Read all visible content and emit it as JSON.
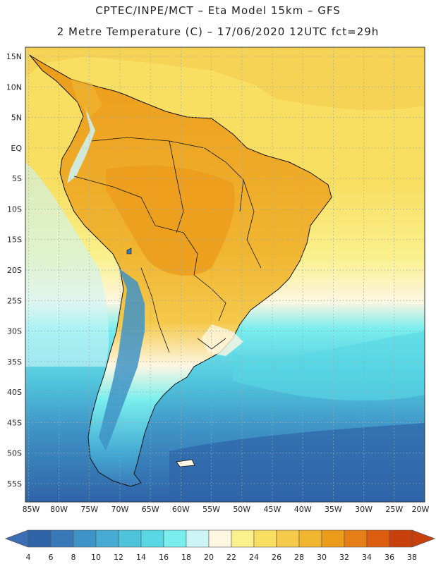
{
  "header": {
    "line1": "CPTEC/INPE/MCT –  Eta Model 15km – GFS",
    "line2": "2 Metre Temperature (C) – 17/06/2020 12UTC fct=29h"
  },
  "map": {
    "region": "South America",
    "lat_labels": [
      "15N",
      "10N",
      "5N",
      "EQ",
      "5S",
      "10S",
      "15S",
      "20S",
      "25S",
      "30S",
      "35S",
      "40S",
      "45S",
      "50S",
      "55S"
    ],
    "lat_values": [
      15,
      10,
      5,
      0,
      -5,
      -10,
      -15,
      -20,
      -25,
      -30,
      -35,
      -40,
      -45,
      -50,
      -55
    ],
    "lon_labels": [
      "85W",
      "80W",
      "75W",
      "70W",
      "65W",
      "60W",
      "55W",
      "50W",
      "45W",
      "40W",
      "35W",
      "30W",
      "25W",
      "20W"
    ],
    "lon_values": [
      -85,
      -80,
      -75,
      -70,
      -65,
      -60,
      -55,
      -50,
      -45,
      -40,
      -35,
      -30,
      -25,
      -20
    ],
    "lat_range": [
      -58,
      16.5
    ],
    "lon_range": [
      -85.5,
      -20
    ]
  },
  "colorbar": {
    "labels": [
      "4",
      "6",
      "8",
      "10",
      "12",
      "14",
      "16",
      "18",
      "20",
      "22",
      "24",
      "26",
      "28",
      "30",
      "32",
      "34",
      "36",
      "38"
    ],
    "low_color": "#3a6eb5",
    "high_color": "#c8400c",
    "colors": [
      "#2f64a8",
      "#3a79b8",
      "#3f93c6",
      "#45abd4",
      "#4fc3dc",
      "#59d7e4",
      "#78eeee",
      "#cdf5f8",
      "#fdf6e2",
      "#faf08c",
      "#f8df62",
      "#f5c94a",
      "#f0b531",
      "#ec9b1a",
      "#e67e18",
      "#dc5d10",
      "#c8400c"
    ]
  }
}
